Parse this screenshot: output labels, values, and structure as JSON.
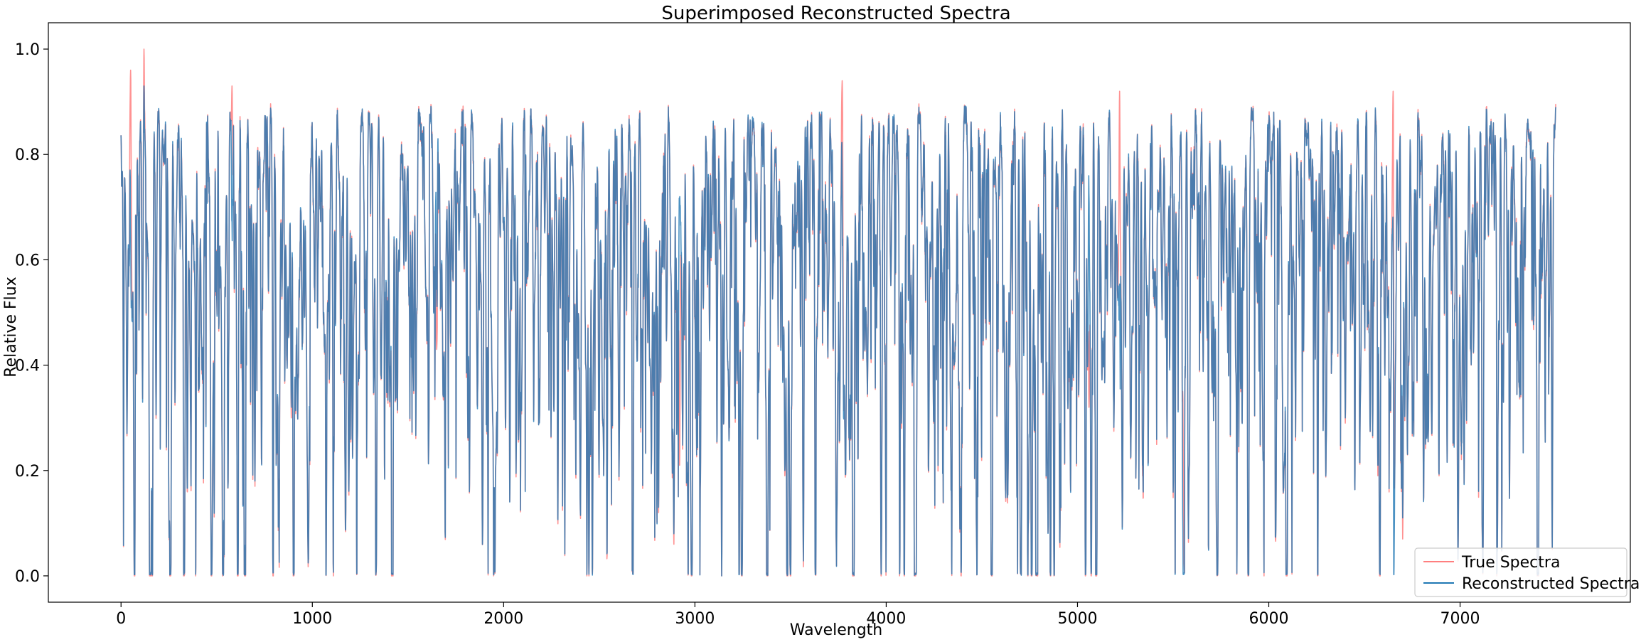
{
  "chart_data": {
    "type": "line",
    "title": "Superimposed Reconstructed Spectra",
    "xlabel": "Wavelength",
    "ylabel": "Relative Flux",
    "xlim": [
      -380,
      7890
    ],
    "ylim": [
      -0.05,
      1.05
    ],
    "xticks": [
      0,
      1000,
      2000,
      3000,
      4000,
      5000,
      6000,
      7000
    ],
    "yticks": [
      0.0,
      0.2,
      0.4,
      0.6,
      0.8,
      1.0
    ],
    "ytick_labels": [
      "0.0",
      "0.2",
      "0.4",
      "0.6",
      "0.8",
      "1.0"
    ],
    "grid": false,
    "legend_position": "lower-right",
    "x_start": 0,
    "x_end": 7500,
    "n_points": 7501,
    "series": [
      {
        "name": "True Spectra",
        "color": "#ff7f7f",
        "baseline": 0.84,
        "features": [
          {
            "x": 120,
            "value": 1.0
          },
          {
            "x": 50,
            "value": 0.96
          },
          {
            "x": 580,
            "value": 0.93
          },
          {
            "x": 3770,
            "value": 0.94
          },
          {
            "x": 5220,
            "value": 0.92
          },
          {
            "x": 6650,
            "value": 0.92
          },
          {
            "x": 700,
            "value": 0.17
          },
          {
            "x": 890,
            "value": 0.3
          },
          {
            "x": 2810,
            "value": 0.12
          },
          {
            "x": 2890,
            "value": 0.06
          },
          {
            "x": 2920,
            "value": 0.21
          },
          {
            "x": 3140,
            "value": 0.0
          },
          {
            "x": 3470,
            "value": 0.19
          },
          {
            "x": 4080,
            "value": 0.28
          },
          {
            "x": 5340,
            "value": 0.19
          },
          {
            "x": 6400,
            "value": 0.29
          },
          {
            "x": 6570,
            "value": 0.19
          },
          {
            "x": 6700,
            "value": 0.07
          },
          {
            "x": 1650,
            "value": 0.43
          },
          {
            "x": 5060,
            "value": 0.32
          },
          {
            "x": 5550,
            "value": 0.35
          },
          {
            "x": 7450,
            "value": 0.57
          }
        ]
      },
      {
        "name": "Reconstructed Spectra",
        "color": "#1f77b4",
        "baseline": 0.84,
        "features": [
          {
            "x": 120,
            "value": 0.93
          },
          {
            "x": 700,
            "value": 0.18
          },
          {
            "x": 890,
            "value": 0.32
          },
          {
            "x": 2810,
            "value": 0.13
          },
          {
            "x": 2890,
            "value": 0.08
          },
          {
            "x": 3140,
            "value": 0.0
          },
          {
            "x": 3470,
            "value": 0.2
          },
          {
            "x": 4080,
            "value": 0.29
          },
          {
            "x": 5340,
            "value": 0.21
          },
          {
            "x": 6400,
            "value": 0.3
          },
          {
            "x": 6570,
            "value": 0.21
          },
          {
            "x": 6700,
            "value": 0.11
          },
          {
            "x": 7450,
            "value": 0.58
          }
        ]
      }
    ]
  }
}
